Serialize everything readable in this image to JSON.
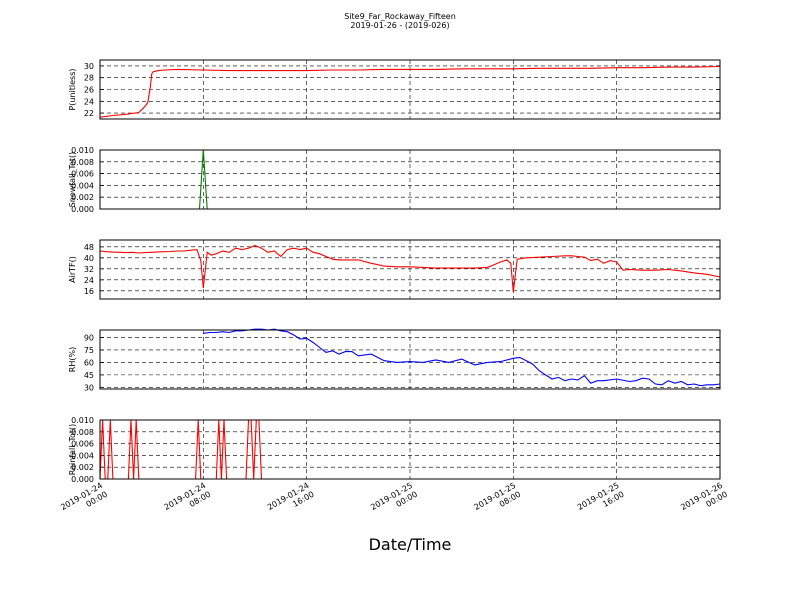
{
  "figure": {
    "title": "Site9_Far_Rockaway_Fifteen",
    "subtitle": "2019-01-26 - (2019-026)",
    "xlabel": "Date/Time"
  },
  "chart_data": [
    {
      "type": "line",
      "ylabel": "P(unitless)",
      "yticks": [
        "22",
        "24",
        "26",
        "28",
        "30"
      ],
      "ylim": [
        21,
        31
      ],
      "grid": true,
      "series": [
        {
          "color": "#ff0000",
          "x": [
            0,
            1,
            2,
            3,
            3.2,
            3.5,
            3.7,
            3.9,
            4.0,
            4.1,
            4.3,
            4.5,
            5,
            6,
            8,
            10,
            12,
            14,
            16,
            18,
            20,
            22,
            24,
            26,
            28,
            30,
            32,
            34,
            36,
            38,
            40,
            42,
            44,
            46,
            48
          ],
          "values": [
            21.3,
            21.6,
            21.8,
            22.1,
            22.5,
            23.2,
            23.8,
            26.5,
            28.6,
            29.0,
            29.1,
            29.2,
            29.3,
            29.4,
            29.3,
            29.2,
            29.2,
            29.2,
            29.2,
            29.3,
            29.3,
            29.4,
            29.4,
            29.4,
            29.5,
            29.5,
            29.5,
            29.6,
            29.6,
            29.6,
            29.7,
            29.7,
            29.8,
            29.8,
            29.9
          ]
        }
      ]
    },
    {
      "type": "line",
      "ylabel": "Snowfall_Tot()",
      "yticks": [
        "0.000",
        "0.002",
        "0.004",
        "0.006",
        "0.008",
        "0.010"
      ],
      "ylim": [
        0,
        0.01
      ],
      "grid": true,
      "series": [
        {
          "color": "#000000",
          "x": [
            0,
            48
          ],
          "values": [
            0,
            0
          ]
        },
        {
          "color": "#008000",
          "x": [
            0,
            7.7,
            8.0,
            8.3,
            48
          ],
          "values": [
            0,
            0,
            0.01,
            0,
            0
          ]
        }
      ]
    },
    {
      "type": "line",
      "ylabel": "AirTF()",
      "yticks": [
        "16",
        "24",
        "32",
        "40",
        "48"
      ],
      "ylim": [
        10,
        53
      ],
      "grid": true,
      "series": [
        {
          "color": "#ff0000",
          "x": [
            0,
            0.5,
            1,
            1.5,
            2,
            2.5,
            3,
            3.5,
            4,
            4.5,
            5,
            5.5,
            6,
            6.5,
            7,
            7.5,
            7.8,
            8.0,
            8.3,
            8.6,
            9,
            9.5,
            10,
            10.5,
            11,
            11.5,
            12,
            12.5,
            13,
            13.5,
            14,
            14.5,
            15,
            15.5,
            16,
            16.5,
            17,
            17.5,
            18,
            18.5,
            19,
            19.5,
            20,
            21,
            22,
            23,
            24,
            25,
            26,
            27,
            28,
            29,
            30,
            30.5,
            31,
            31.5,
            31.8,
            32.0,
            32.3,
            33,
            34,
            35,
            36,
            36.5,
            37,
            37.5,
            38,
            38.5,
            39,
            39.5,
            40,
            40.5,
            41,
            42,
            43,
            44,
            45,
            46,
            47,
            48
          ],
          "values": [
            45,
            44.5,
            44.2,
            44,
            43.8,
            44,
            43.5,
            43.8,
            44,
            44.3,
            44.5,
            44.6,
            45,
            45,
            45.5,
            46,
            38,
            18,
            44,
            42,
            43,
            45,
            44,
            47,
            46,
            47,
            49,
            47,
            44,
            45,
            41,
            46,
            47,
            46,
            47,
            44,
            43,
            41,
            39,
            38.5,
            38.5,
            38.5,
            38.5,
            36,
            34,
            33.5,
            33.5,
            33,
            32.5,
            32.5,
            32.5,
            32.5,
            33,
            35,
            37,
            38.5,
            36,
            15,
            39,
            40,
            40.5,
            41,
            41.5,
            41.5,
            41,
            40.5,
            38,
            39,
            36,
            38,
            37,
            31,
            31.5,
            31,
            31,
            31.5,
            30.5,
            29,
            28,
            26
          ]
        }
      ]
    },
    {
      "type": "line",
      "ylabel": "RH(%)",
      "yticks": [
        "30",
        "45",
        "60",
        "75",
        "90"
      ],
      "ylim": [
        28,
        99
      ],
      "grid": true,
      "series": [
        {
          "color": "#0000ff",
          "x": [
            8,
            8.5,
            9,
            9.5,
            10,
            10.5,
            11,
            11.5,
            12,
            12.5,
            13,
            13.5,
            14,
            14.5,
            15,
            15.5,
            16,
            16.5,
            17,
            17.5,
            18,
            18.5,
            19,
            19.5,
            20,
            21,
            22,
            23,
            24,
            25,
            26,
            27,
            28,
            29,
            30,
            31,
            32,
            32.5,
            33,
            33.5,
            34,
            34.5,
            35,
            35.5,
            36,
            36.5,
            37,
            37.5,
            38,
            38.5,
            39,
            40,
            41,
            41.5,
            42,
            42.5,
            43,
            43.5,
            44,
            44.5,
            45,
            45.5,
            46,
            46.5,
            47,
            47.5,
            48
          ],
          "values": [
            95,
            96,
            96,
            97,
            96,
            98,
            98,
            99,
            100,
            100,
            99,
            100,
            98,
            97,
            93,
            88,
            89,
            84,
            78,
            72,
            74,
            70,
            73,
            73,
            68,
            70,
            62,
            60,
            61,
            60,
            63,
            60,
            64,
            57,
            60,
            61,
            65,
            66,
            62,
            58,
            50,
            45,
            40,
            42,
            38,
            40,
            39,
            44,
            35,
            38,
            38,
            40,
            37,
            38,
            41,
            40,
            34,
            33,
            38,
            35,
            37,
            33,
            34,
            32,
            33,
            33,
            34
          ]
        }
      ]
    },
    {
      "type": "line",
      "ylabel": "Rainfall_Tot()",
      "yticks": [
        "0.000",
        "0.002",
        "0.004",
        "0.006",
        "0.008",
        "0.010"
      ],
      "ylim": [
        0,
        0.01
      ],
      "grid": true,
      "series": [
        {
          "color": "#000000",
          "x": [
            0,
            48
          ],
          "values": [
            0,
            0
          ]
        },
        {
          "color": "#ff0000",
          "x": [
            0,
            0.2,
            0.4,
            0.6,
            0.8,
            1.0,
            1.2,
            2.2,
            2.4,
            2.6,
            2.8,
            3.0,
            7.4,
            7.6,
            7.8,
            8.0,
            9.0,
            9.2,
            9.4,
            9.6,
            9.8,
            10.0,
            11.3,
            11.5,
            11.7,
            11.9,
            12.1,
            12.3,
            12.5,
            48
          ],
          "values": [
            0,
            0.01,
            0,
            0,
            0.01,
            0,
            0,
            0,
            0.01,
            0,
            0.01,
            0,
            0,
            0.01,
            0,
            0,
            0,
            0.01,
            0,
            0.01,
            0,
            0,
            0,
            0.01,
            0.01,
            0,
            0.01,
            0.01,
            0,
            0
          ]
        }
      ]
    }
  ],
  "xaxis": {
    "range": [
      0,
      48
    ],
    "tick_positions": [
      0,
      8,
      16,
      24,
      32,
      40,
      48
    ],
    "tick_labels": [
      [
        "2019-01-24",
        "00:00"
      ],
      [
        "2019-01-24",
        "08:00"
      ],
      [
        "2019-01-24",
        "16:00"
      ],
      [
        "2019-01-25",
        "00:00"
      ],
      [
        "2019-01-25",
        "08:00"
      ],
      [
        "2019-01-25",
        "16:00"
      ],
      [
        "2019-01-26",
        "00:00"
      ]
    ]
  }
}
